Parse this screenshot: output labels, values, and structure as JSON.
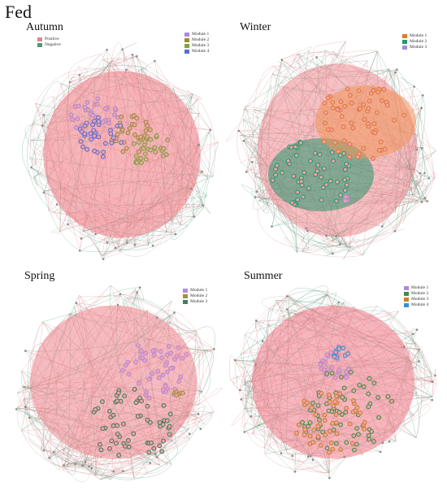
{
  "figure": {
    "title": "Fed"
  },
  "edge_legend": {
    "items": [
      {
        "label": "Positive",
        "color": "#d98a8f"
      },
      {
        "label": "Negative",
        "color": "#4f9a78"
      }
    ]
  },
  "panels": [
    {
      "title": "Autumn",
      "modules": [
        {
          "label": "Module 1",
          "color": "#a98bd6"
        },
        {
          "label": "Module 2",
          "color": "#9a8b3a"
        },
        {
          "label": "Module 3",
          "color": "#7fa23a"
        },
        {
          "label": "Module 4",
          "color": "#5a6fd0"
        }
      ]
    },
    {
      "title": "Winter",
      "modules": [
        {
          "label": "Module 1",
          "color": "#e07a2e"
        },
        {
          "label": "Module 2",
          "color": "#1f9a6a"
        },
        {
          "label": "Module 3",
          "color": "#a58ad8"
        }
      ]
    },
    {
      "title": "Spring",
      "modules": [
        {
          "label": "Module 1",
          "color": "#b48be0"
        },
        {
          "label": "Module 2",
          "color": "#a0903a"
        },
        {
          "label": "Module 3",
          "color": "#3f7f5f"
        }
      ]
    },
    {
      "title": "Summer",
      "modules": [
        {
          "label": "Module 1",
          "color": "#b08ad8"
        },
        {
          "label": "Module 2",
          "color": "#3f8f4a"
        },
        {
          "label": "Module 3",
          "color": "#c8822a"
        },
        {
          "label": "Module 4",
          "color": "#3a8fd8"
        }
      ]
    }
  ]
}
